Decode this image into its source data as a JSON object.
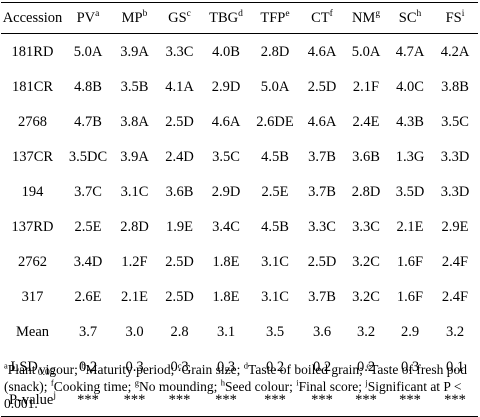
{
  "table": {
    "columns": [
      {
        "label": "Accession",
        "sup": ""
      },
      {
        "label": "PV",
        "sup": "a"
      },
      {
        "label": "MP",
        "sup": "b"
      },
      {
        "label": "GS",
        "sup": "c"
      },
      {
        "label": "TBG",
        "sup": "d"
      },
      {
        "label": "TFP",
        "sup": "e"
      },
      {
        "label": "CT",
        "sup": "f"
      },
      {
        "label": "NM",
        "sup": "g"
      },
      {
        "label": "SC",
        "sup": "h"
      },
      {
        "label": "FS",
        "sup": "i"
      }
    ],
    "rows": [
      {
        "name": "181RD",
        "values": [
          "5.0A",
          "3.9A",
          "3.3C",
          "4.0B",
          "2.8D",
          "4.6A",
          "5.0A",
          "4.7A",
          "4.2A"
        ]
      },
      {
        "name": "181CR",
        "values": [
          "4.8B",
          "3.5B",
          "4.1A",
          "2.9D",
          "5.0A",
          "2.5D",
          "2.1F",
          "4.0C",
          "3.8B"
        ]
      },
      {
        "name": "2768",
        "values": [
          "4.7B",
          "3.8A",
          "2.5D",
          "4.6A",
          "2.6DE",
          "4.6A",
          "2.4E",
          "4.3B",
          "3.5C"
        ]
      },
      {
        "name": "137CR",
        "values": [
          "3.5DC",
          "3.9A",
          "2.4D",
          "3.5C",
          "4.5B",
          "3.7B",
          "3.6B",
          "1.3G",
          "3.3D"
        ]
      },
      {
        "name": "194",
        "values": [
          "3.7C",
          "3.1C",
          "3.6B",
          "2.9D",
          "2.5E",
          "3.7B",
          "2.8D",
          "3.5D",
          "3.3D"
        ]
      },
      {
        "name": "137RD",
        "values": [
          "2.5E",
          "2.8D",
          "1.9E",
          "3.4C",
          "4.5B",
          "3.3C",
          "3.3C",
          "2.1E",
          "2.9E"
        ]
      },
      {
        "name": "2762",
        "values": [
          "3.4D",
          "1.2F",
          "2.5D",
          "1.8E",
          "3.1C",
          "2.5D",
          "3.2C",
          "1.6F",
          "2.4F"
        ]
      },
      {
        "name": "317",
        "values": [
          "2.6E",
          "2.1E",
          "2.5D",
          "1.8E",
          "3.1C",
          "3.7B",
          "3.2C",
          "1.6F",
          "2.4F"
        ]
      },
      {
        "name": "Mean",
        "values": [
          "3.7",
          "3.0",
          "2.8",
          "3.1",
          "3.5",
          "3.6",
          "3.2",
          "2.9",
          "3.2"
        ]
      }
    ],
    "lsd": {
      "label": "LSD",
      "sub": "0.05",
      "values": [
        "0.2",
        "0.3",
        "0.3",
        "0.3",
        "0.2",
        "0.2",
        "0.2",
        "0.3",
        "0.1"
      ]
    },
    "pvalue": {
      "label": "P-value",
      "sup": "j",
      "values": [
        "***",
        "***",
        "***",
        "***",
        "***",
        "***",
        "***",
        "***",
        "***"
      ]
    }
  },
  "notes": [
    {
      "sup": "a",
      "text": "Plant vigour; "
    },
    {
      "sup": "b",
      "text": "Maturity period; "
    },
    {
      "sup": "c",
      "text": "Grain size; "
    },
    {
      "sup": "d",
      "text": "Taste of boiled grain; "
    },
    {
      "sup": "e",
      "text": "Taste of fresh pod (snack); "
    },
    {
      "sup": "f",
      "text": "Cooking time; "
    },
    {
      "sup": "g",
      "text": "No mounding; "
    },
    {
      "sup": "h",
      "text": "Seed colour; "
    },
    {
      "sup": "i",
      "text": "Final score; "
    },
    {
      "sup": "j",
      "text": "Significant at P < 0.001."
    }
  ]
}
